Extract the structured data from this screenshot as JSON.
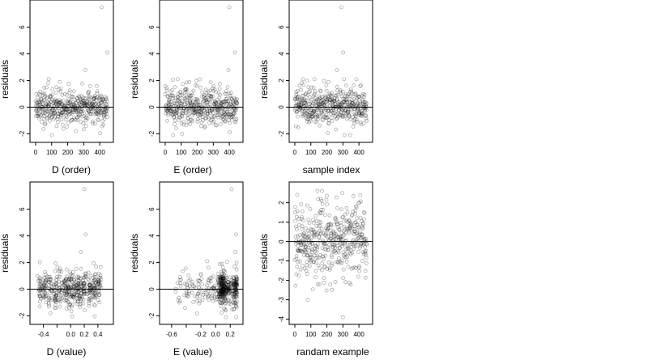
{
  "chart_data": [
    {
      "id": "d-order",
      "type": "scatter",
      "xlabel": "D (order)",
      "ylabel": "residuals",
      "xlim": [
        -15,
        465
      ],
      "ylim": [
        -2.4,
        7.8
      ],
      "xticks": [
        0,
        100,
        200,
        300,
        400
      ],
      "yticks": [
        -2,
        0,
        2,
        4,
        6
      ],
      "xtick_labels": [
        "0",
        "100",
        "200",
        "300",
        "400"
      ],
      "ytick_labels": [
        "-2",
        "0",
        "2",
        "4",
        "6"
      ],
      "hline": 0,
      "n_points": 450,
      "x_pattern": "order",
      "outliers": [
        [
          412,
          7.5
        ],
        [
          447,
          4.1
        ],
        [
          310,
          2.8
        ],
        [
          150,
          1.9
        ]
      ]
    },
    {
      "id": "e-order",
      "type": "scatter",
      "xlabel": "E (order)",
      "ylabel": "residuals",
      "xlim": [
        -15,
        465
      ],
      "ylim": [
        -2.4,
        7.8
      ],
      "xticks": [
        0,
        100,
        200,
        300,
        400
      ],
      "yticks": [
        -2,
        0,
        2,
        4,
        6
      ],
      "xtick_labels": [
        "0",
        "100",
        "200",
        "300",
        "400"
      ],
      "ytick_labels": [
        "-2",
        "0",
        "2",
        "4",
        "6"
      ],
      "hline": 0,
      "n_points": 450,
      "x_pattern": "order",
      "outliers": [
        [
          400,
          7.5
        ],
        [
          435,
          4.1
        ],
        [
          395,
          2.8
        ],
        [
          150,
          1.9
        ]
      ]
    },
    {
      "id": "sample-index",
      "type": "scatter",
      "xlabel": "sample index",
      "ylabel": "residuals",
      "xlim": [
        -15,
        465
      ],
      "ylim": [
        -2.4,
        7.8
      ],
      "xticks": [
        0,
        100,
        200,
        300,
        400
      ],
      "yticks": [
        -2,
        0,
        2,
        4,
        6
      ],
      "xtick_labels": [
        "0",
        "100",
        "200",
        "300",
        "400"
      ],
      "ytick_labels": [
        "-2",
        "0",
        "2",
        "4",
        "6"
      ],
      "hline": 0,
      "n_points": 450,
      "x_pattern": "order",
      "outliers": [
        [
          290,
          7.5
        ],
        [
          302,
          4.1
        ],
        [
          262,
          2.8
        ],
        [
          210,
          1.9
        ]
      ]
    },
    {
      "id": "d-value",
      "type": "scatter",
      "xlabel": "D (value)",
      "ylabel": "residuals",
      "xlim": [
        -0.55,
        0.58
      ],
      "ylim": [
        -2.4,
        7.8
      ],
      "xticks": [
        -0.4,
        -0.2,
        0.0,
        0.2,
        0.4
      ],
      "yticks": [
        -2,
        0,
        2,
        4,
        6
      ],
      "xtick_labels": [
        "-0.4",
        "",
        "0.0",
        "0.2",
        "0.4"
      ],
      "ytick_labels": [
        "-2",
        "0",
        "2",
        "4",
        "6"
      ],
      "hline": 0,
      "n_points": 450,
      "x_pattern": "clustered",
      "outliers": [
        [
          0.2,
          7.5
        ],
        [
          0.22,
          4.1
        ],
        [
          0.15,
          2.8
        ]
      ]
    },
    {
      "id": "e-value",
      "type": "scatter",
      "xlabel": "E (value)",
      "ylabel": "residuals",
      "xlim": [
        -0.72,
        0.33
      ],
      "ylim": [
        -2.4,
        7.8
      ],
      "xticks": [
        -0.6,
        -0.4,
        -0.2,
        0.0,
        0.2
      ],
      "yticks": [
        -2,
        0,
        2,
        4,
        6
      ],
      "xtick_labels": [
        "-0.6",
        "",
        "-0.2",
        "0.0",
        "0.2"
      ],
      "ytick_labels": [
        "-2",
        "0",
        "2",
        "4",
        "6"
      ],
      "hline": 0,
      "n_points": 450,
      "x_pattern": "skewed",
      "outliers": [
        [
          0.22,
          7.5
        ],
        [
          0.28,
          4.1
        ],
        [
          0.27,
          2.8
        ]
      ]
    },
    {
      "id": "random-example",
      "type": "scatter",
      "xlabel": "randam example",
      "ylabel": "residuals",
      "xlim": [
        -15,
        465
      ],
      "ylim": [
        -4.1,
        2.9
      ],
      "xticks": [
        0,
        100,
        200,
        300,
        400
      ],
      "yticks": [
        -4,
        -3,
        -2,
        -1,
        0,
        1,
        2
      ],
      "xtick_labels": [
        "0",
        "100",
        "200",
        "300",
        "400"
      ],
      "ytick_labels": [
        "-4",
        "-3",
        "-2",
        "-1",
        "0",
        "1",
        "2"
      ],
      "hline": 0,
      "n_points": 450,
      "x_pattern": "order",
      "outliers": [
        [
          300,
          -3.9
        ],
        [
          80,
          -3.0
        ]
      ]
    }
  ]
}
